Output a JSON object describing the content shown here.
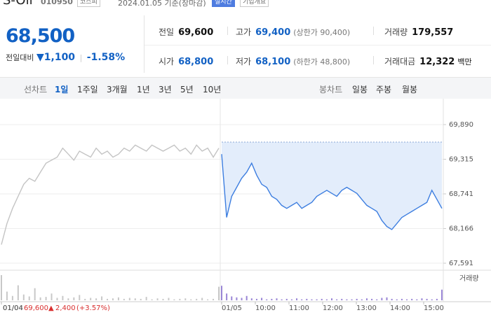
{
  "header": {
    "name": "S-Oil",
    "code": "010950",
    "market": "코스피",
    "date": "2024.01.05 기준(장마감)",
    "realtime": "실시간",
    "company": "기업개요"
  },
  "quote": {
    "price": "68,500",
    "change_label": "전일대비",
    "change": "1,100",
    "change_pct": "-1.58%"
  },
  "info": [
    [
      {
        "label": "전일",
        "value": "69,600"
      },
      {
        "label": "고가",
        "value": "69,400",
        "note": "(상한가 90,400)"
      },
      {
        "label": "거래량",
        "value": "179,557"
      }
    ],
    [
      {
        "label": "시가",
        "value": "68,800"
      },
      {
        "label": "저가",
        "value": "68,100",
        "note": "(하한가 48,800)"
      },
      {
        "label": "거래대금",
        "value": "12,322",
        "unit": "백만"
      }
    ]
  ],
  "tabs": {
    "line_label": "선차트",
    "line": [
      "1일",
      "1주일",
      "3개월",
      "1년",
      "3년",
      "5년",
      "10년"
    ],
    "candle_label": "봉차트",
    "candle": [
      "일봉",
      "주봉",
      "월봉"
    ]
  },
  "chart_data": {
    "type": "line",
    "ylim": [
      67510,
      70215
    ],
    "yticks": [
      {
        "value": 69890,
        "label": "69,890"
      },
      {
        "value": 69315,
        "label": "69,315"
      },
      {
        "value": 68741,
        "label": "68,741"
      },
      {
        "value": 68166,
        "label": "68,166"
      },
      {
        "value": 67591,
        "label": "67,591"
      }
    ],
    "baseline": 69600,
    "grid": true,
    "x_labels": [
      "01/04",
      "01/05",
      "10:00",
      "11:00",
      "12:00",
      "13:00",
      "14:00",
      "15:00"
    ],
    "series": [
      {
        "name": "01/04",
        "color": "#c4c4c4",
        "values": [
          67900,
          68250,
          68500,
          68700,
          68900,
          69000,
          68950,
          69100,
          69250,
          69300,
          69350,
          69500,
          69400,
          69300,
          69450,
          69400,
          69350,
          69500,
          69400,
          69450,
          69350,
          69400,
          69500,
          69450,
          69550,
          69500,
          69450,
          69550,
          69500,
          69450,
          69500,
          69550,
          69450,
          69500,
          69400,
          69550,
          69450,
          69500,
          69350,
          69500
        ]
      },
      {
        "name": "01/05",
        "color": "#3d7ee0",
        "values": [
          69400,
          68350,
          68700,
          68850,
          69000,
          69100,
          69250,
          69050,
          68900,
          68850,
          68700,
          68650,
          68550,
          68500,
          68550,
          68600,
          68500,
          68550,
          68600,
          68700,
          68750,
          68800,
          68750,
          68700,
          68800,
          68850,
          68800,
          68750,
          68650,
          68550,
          68500,
          68450,
          68300,
          68200,
          68150,
          68250,
          68350,
          68400,
          68450,
          68500,
          68550,
          68600,
          68800,
          68650,
          68500
        ]
      }
    ],
    "volume_label": "거래량",
    "volume": [
      {
        "color": "#c8c8c8",
        "values": [
          52000,
          18000,
          9000,
          31000,
          12000,
          8000,
          25000,
          6000,
          7000,
          14000,
          5000,
          9000,
          4000,
          6000,
          11000,
          3000,
          5000,
          4000,
          8000,
          3000,
          4000,
          6000,
          3000,
          5000,
          4000,
          3000,
          7000,
          2000,
          4000,
          3000,
          5000,
          2000,
          3000,
          4000,
          2000,
          3000,
          5000,
          2000,
          3000,
          28000
        ]
      },
      {
        "color": "#9a86d6",
        "values": [
          30000,
          14000,
          8000,
          6000,
          5000,
          9000,
          4000,
          3000,
          5000,
          2000,
          3000,
          4000,
          2000,
          3000,
          2000,
          4000,
          2000,
          3000,
          2000,
          2000,
          3000,
          2000,
          4000,
          2000,
          3000,
          2000,
          2000,
          3000,
          2000,
          4000,
          3000,
          2000,
          5000,
          6000,
          3000,
          2000,
          3000,
          2000,
          3000,
          2000,
          4000,
          3000,
          2000,
          3000,
          22000
        ]
      }
    ],
    "footer": {
      "date": "01/04",
      "close": "69,600",
      "change": "2,400",
      "pct": "(+3.57%)"
    }
  }
}
